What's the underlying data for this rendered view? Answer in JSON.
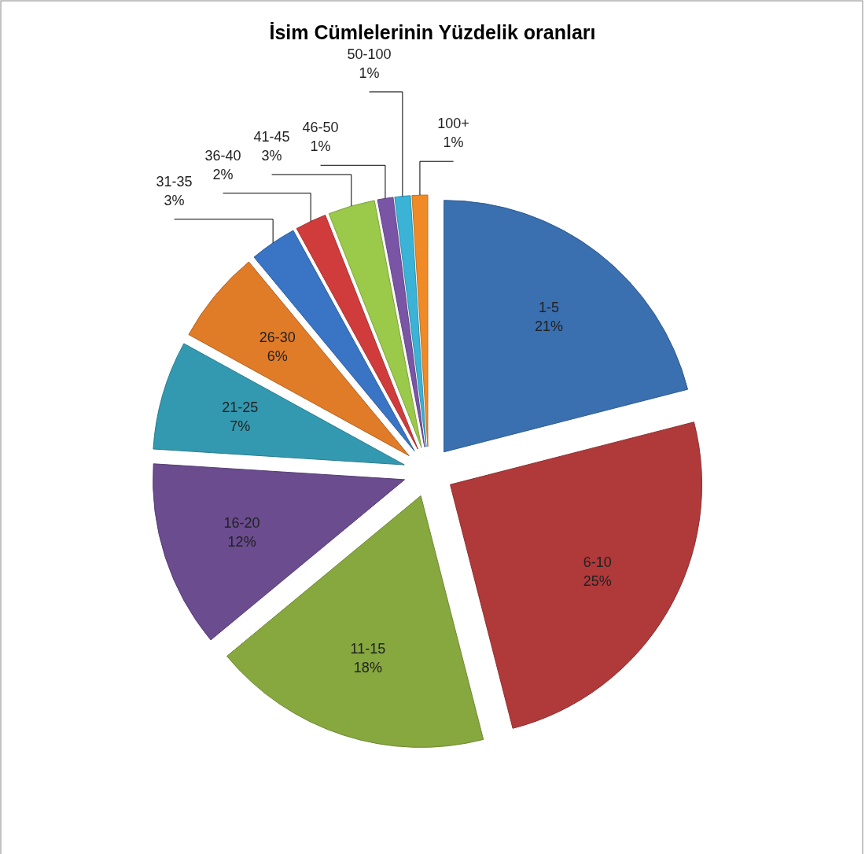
{
  "chart_data": {
    "type": "pie",
    "title": "İsim Cümlelerinin Yüzdelik oranları",
    "categories": [
      "1-5",
      "6-10",
      "11-15",
      "16-20",
      "21-25",
      "26-30",
      "31-35",
      "36-40",
      "41-45",
      "46-50",
      "50-100",
      "100+"
    ],
    "values": [
      21,
      25,
      18,
      12,
      7,
      6,
      3,
      2,
      3,
      1,
      1,
      1
    ],
    "colors": [
      "#3a6fb0",
      "#b0393a",
      "#86a83e",
      "#6a4c8f",
      "#3399b0",
      "#e07b28",
      "#3a74c4",
      "#d03c3c",
      "#9bc94a",
      "#7a55a6",
      "#3ab3d6",
      "#f08a26"
    ],
    "value_labels": [
      "21%",
      "25%",
      "18%",
      "12%",
      "7%",
      "6%",
      "3%",
      "2%",
      "3%",
      "1%",
      "1%",
      "1%"
    ],
    "legend": false
  }
}
